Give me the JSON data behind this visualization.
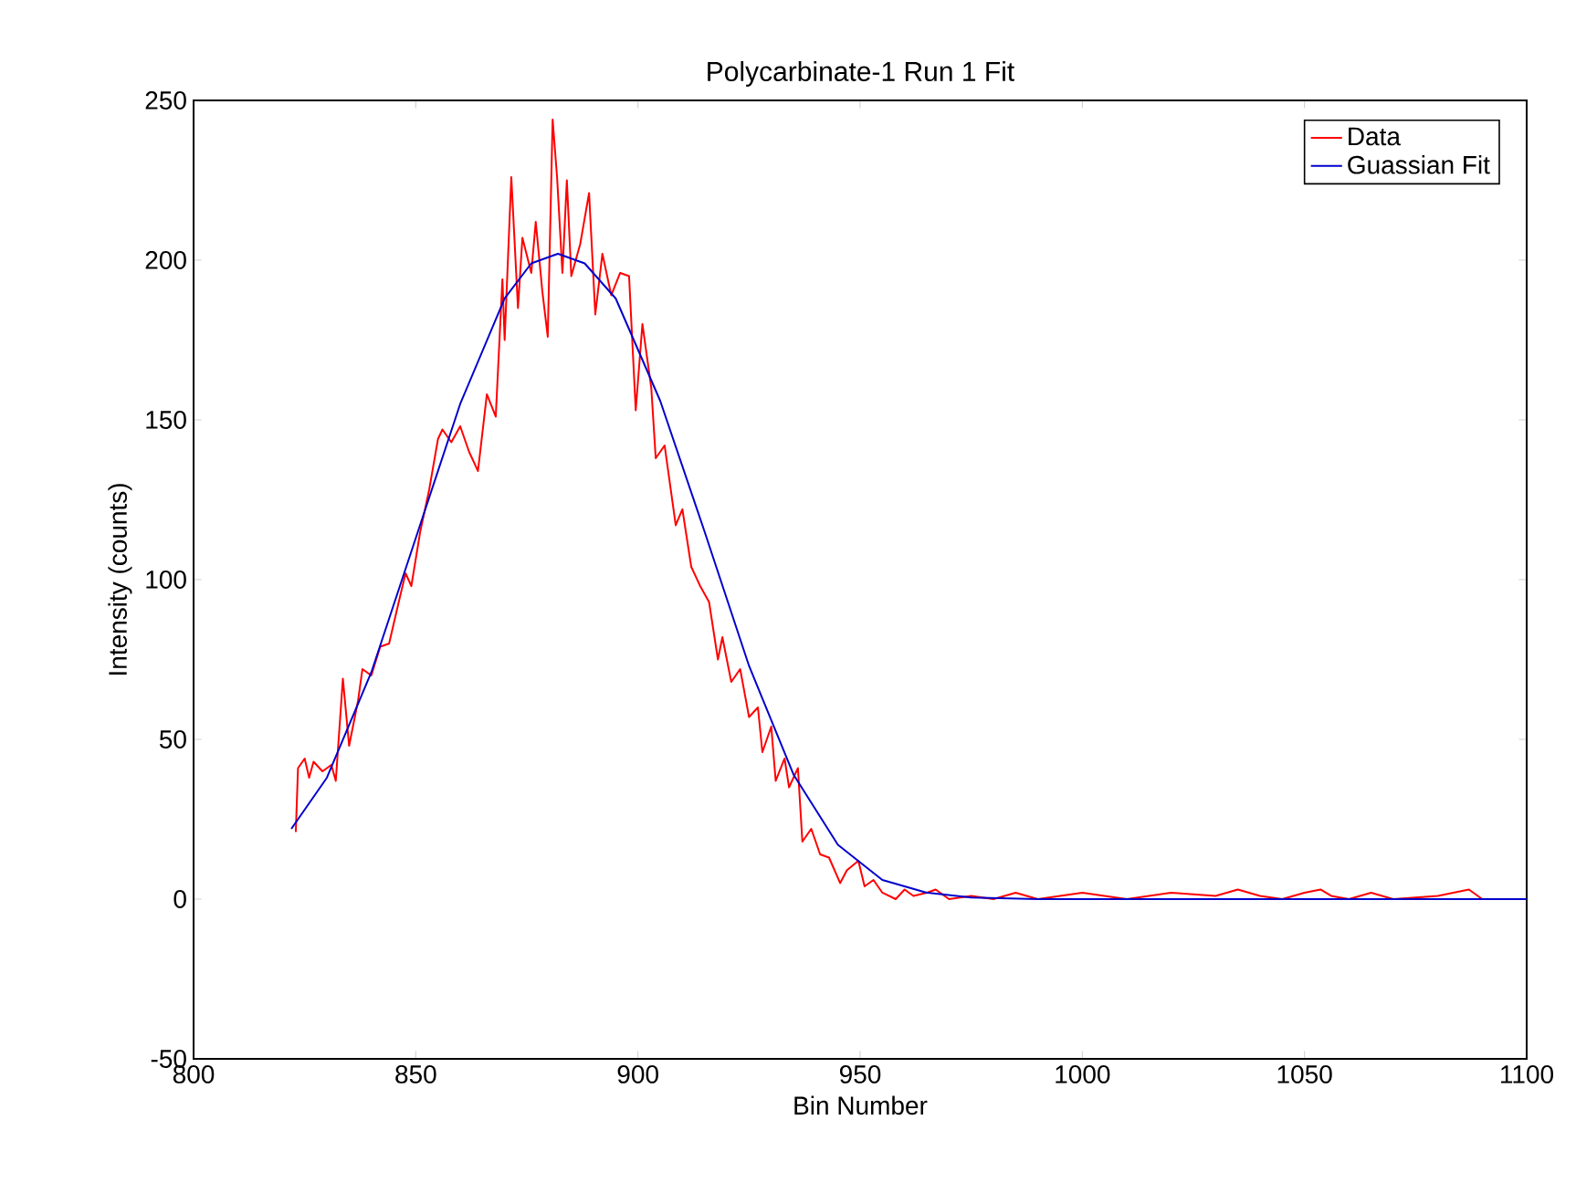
{
  "chart_data": {
    "type": "line",
    "title": "Polycarbinate-1 Run 1 Fit",
    "xlabel": "Bin Number",
    "ylabel": "Intensity (counts)",
    "xlim": [
      800,
      1100
    ],
    "ylim": [
      -50,
      250
    ],
    "xticks": [
      800,
      850,
      900,
      950,
      1000,
      1050,
      1100
    ],
    "yticks": [
      -50,
      0,
      50,
      100,
      150,
      200,
      250
    ],
    "legend": "top right",
    "series": [
      {
        "name": "Data",
        "color": "#ff0000",
        "x": [
          823,
          823.5,
          825,
          826,
          827,
          829,
          831,
          832,
          833.6,
          835,
          837,
          838,
          840,
          842,
          844,
          846,
          847.7,
          849,
          851,
          853,
          855,
          856,
          858,
          860,
          862,
          864,
          866,
          868,
          869.5,
          870,
          871.5,
          873,
          874,
          876,
          877,
          878.5,
          879.7,
          880.8,
          881.8,
          883,
          884,
          885,
          887,
          889,
          890.4,
          892,
          894,
          896,
          898,
          899.5,
          901,
          903,
          904,
          906,
          908.5,
          910,
          912,
          914,
          916,
          918,
          919,
          921,
          923,
          925,
          927,
          928,
          930,
          931,
          933,
          934,
          936,
          937,
          939,
          941,
          943,
          945.5,
          947,
          949.6,
          951,
          953,
          955,
          958,
          960,
          962,
          965,
          967,
          970,
          975,
          980,
          985,
          990,
          995,
          1000,
          1010,
          1020,
          1030,
          1035,
          1040,
          1045,
          1050,
          1053.6,
          1056,
          1060,
          1065,
          1070,
          1080,
          1087,
          1090
        ],
        "values": [
          21,
          41,
          44,
          38,
          43,
          40,
          42,
          37,
          69,
          48,
          62,
          72,
          70,
          79,
          80,
          92,
          102,
          98,
          115,
          128,
          144,
          147,
          143,
          148,
          140,
          134,
          158,
          151,
          194,
          175,
          226,
          185,
          207,
          196,
          212,
          190,
          176,
          244,
          226,
          196,
          225,
          195,
          205,
          221,
          183,
          202,
          189,
          196,
          195,
          153,
          180,
          160,
          138,
          142,
          117,
          122,
          104,
          98,
          93,
          75,
          82,
          68,
          72,
          57,
          60,
          46,
          54,
          37,
          44,
          35,
          41,
          18,
          22,
          14,
          13,
          5,
          9,
          12,
          4,
          6,
          2,
          0,
          3,
          1,
          2,
          3,
          0,
          1,
          0,
          2,
          0,
          1,
          2,
          0,
          2,
          1,
          3,
          1,
          0,
          2,
          3,
          1,
          0,
          2,
          0,
          1,
          3,
          0
        ]
      },
      {
        "name": "Guassian Fit",
        "color": "#0000cc",
        "x": [
          822,
          830,
          840,
          850,
          860,
          870,
          876,
          882,
          888,
          895,
          905,
          915,
          925,
          935,
          945,
          955,
          965,
          975,
          990,
          1100
        ],
        "values": [
          22,
          38,
          71,
          113,
          155,
          188,
          199,
          202,
          199,
          188,
          156,
          115,
          73,
          39,
          17,
          6,
          2,
          0.5,
          0,
          0
        ]
      }
    ]
  }
}
